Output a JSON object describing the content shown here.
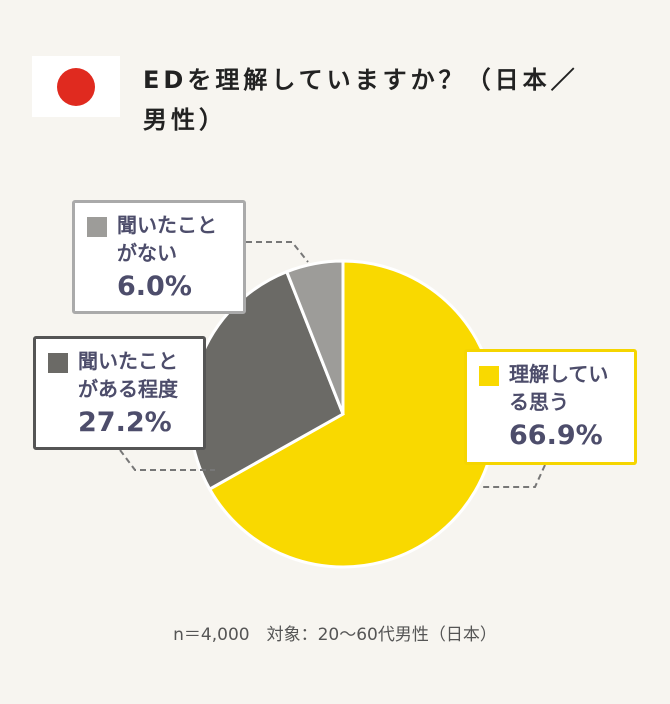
{
  "chart_data": {
    "type": "pie",
    "title": "EDを理解していますか？（日本／男性）",
    "categories": [
      "理解している思う",
      "聞いたことがある程度",
      "聞いたことがない"
    ],
    "values": [
      66.9,
      27.2,
      6.0
    ],
    "value_labels": [
      "66.9%",
      "27.2%",
      "6.0%"
    ],
    "colors": [
      "#f9d900",
      "#6b6a66",
      "#9d9c99"
    ],
    "note": "n＝4,000　対象：20～60代男性（日本）"
  }
}
